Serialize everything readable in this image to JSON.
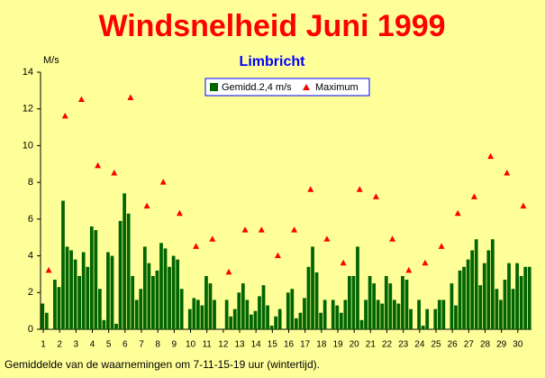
{
  "chart_data": {
    "type": "bar",
    "title": "Windsnelheid Juni 1999",
    "subtitle": "Limbricht",
    "y_label": "M/s",
    "footnote": "Gemiddelde van de waarnemingen om 7-11-15-19 uur (wintertijd).",
    "categories": [
      "1",
      null,
      null,
      null,
      "2",
      null,
      null,
      null,
      "3",
      null,
      null,
      null,
      "4",
      null,
      null,
      null,
      "5",
      null,
      null,
      null,
      "6",
      null,
      null,
      null,
      "7",
      null,
      null,
      null,
      "8",
      null,
      null,
      null,
      "9",
      null,
      null,
      null,
      "10",
      null,
      null,
      null,
      "11",
      null,
      null,
      null,
      "12",
      null,
      null,
      null,
      "13",
      null,
      null,
      null,
      "14",
      null,
      null,
      null,
      "15",
      null,
      null,
      null,
      "16",
      null,
      null,
      null,
      "17",
      null,
      null,
      null,
      "18",
      null,
      null,
      null,
      "19",
      null,
      null,
      null,
      "20",
      null,
      null,
      null,
      "21",
      null,
      null,
      null,
      "22",
      null,
      null,
      null,
      "23",
      null,
      null,
      null,
      "24",
      null,
      null,
      null,
      "25",
      null,
      null,
      null,
      "26",
      null,
      null,
      null,
      "27",
      null,
      null,
      null,
      "28",
      null,
      null,
      null,
      "29",
      null,
      null,
      null,
      "30",
      null,
      null,
      null
    ],
    "series": [
      {
        "name": "Gemidd.2,4 m/s",
        "color": "#006400",
        "values": [
          1.4,
          0.9,
          0,
          2.7,
          2.3,
          7.0,
          4.5,
          4.3,
          3.8,
          2.9,
          4.2,
          3.4,
          5.6,
          5.4,
          2.2,
          0.5,
          4.2,
          4.0,
          0.3,
          5.9,
          7.4,
          6.3,
          2.9,
          1.6,
          2.2,
          4.5,
          3.6,
          2.9,
          3.2,
          4.7,
          4.4,
          3.4,
          4.0,
          3.8,
          2.2,
          0,
          1.1,
          1.7,
          1.6,
          1.3,
          2.9,
          2.5,
          1.6,
          0,
          0,
          1.6,
          0.7,
          1.1,
          2.0,
          2.5,
          1.6,
          0.8,
          1.0,
          1.8,
          2.4,
          1.3,
          0.2,
          0.7,
          1.1,
          0,
          2.0,
          2.2,
          0.6,
          0.9,
          1.7,
          3.4,
          4.5,
          3.1,
          0.9,
          1.6,
          0,
          1.6,
          1.3,
          0.9,
          1.6,
          2.9,
          2.9,
          4.5,
          0.5,
          1.6,
          2.9,
          2.5,
          1.6,
          1.4,
          2.9,
          2.5,
          1.6,
          1.4,
          2.9,
          2.7,
          1.1,
          0,
          1.6,
          0.2,
          1.1,
          0,
          1.1,
          1.6,
          1.6,
          0,
          2.5,
          1.3,
          3.2,
          3.4,
          3.8,
          4.3,
          4.9,
          2.4,
          3.6,
          4.3,
          4.9,
          2.2,
          1.6,
          2.7,
          3.6,
          2.2,
          3.6,
          2.9,
          3.4,
          3.4
        ]
      },
      {
        "name": "Maximum",
        "color": "#ff0000",
        "marker": "triangle",
        "values": [
          null,
          null,
          3.2,
          null,
          null,
          null,
          11.6,
          null,
          null,
          null,
          12.5,
          null,
          null,
          null,
          8.9,
          null,
          null,
          null,
          8.5,
          null,
          null,
          null,
          12.6,
          null,
          null,
          null,
          6.7,
          null,
          null,
          null,
          8.0,
          null,
          null,
          null,
          6.3,
          null,
          null,
          null,
          4.5,
          null,
          null,
          null,
          4.9,
          null,
          null,
          null,
          3.1,
          null,
          null,
          null,
          5.4,
          null,
          null,
          null,
          5.4,
          null,
          null,
          null,
          4.0,
          null,
          null,
          null,
          5.4,
          null,
          null,
          null,
          7.6,
          null,
          null,
          null,
          4.9,
          null,
          null,
          null,
          3.6,
          null,
          null,
          null,
          7.6,
          null,
          null,
          null,
          7.2,
          null,
          null,
          null,
          4.9,
          null,
          null,
          null,
          3.2,
          null,
          null,
          null,
          3.6,
          null,
          null,
          null,
          4.5,
          null,
          null,
          null,
          6.3,
          null,
          null,
          null,
          7.2,
          null,
          null,
          null,
          9.4,
          null,
          null,
          null,
          8.5,
          null,
          null,
          null,
          6.7,
          null
        ]
      }
    ],
    "ylim": [
      0,
      14
    ],
    "yticks": [
      0,
      2,
      4,
      6,
      8,
      10,
      12,
      14
    ],
    "legend": "top-center"
  }
}
